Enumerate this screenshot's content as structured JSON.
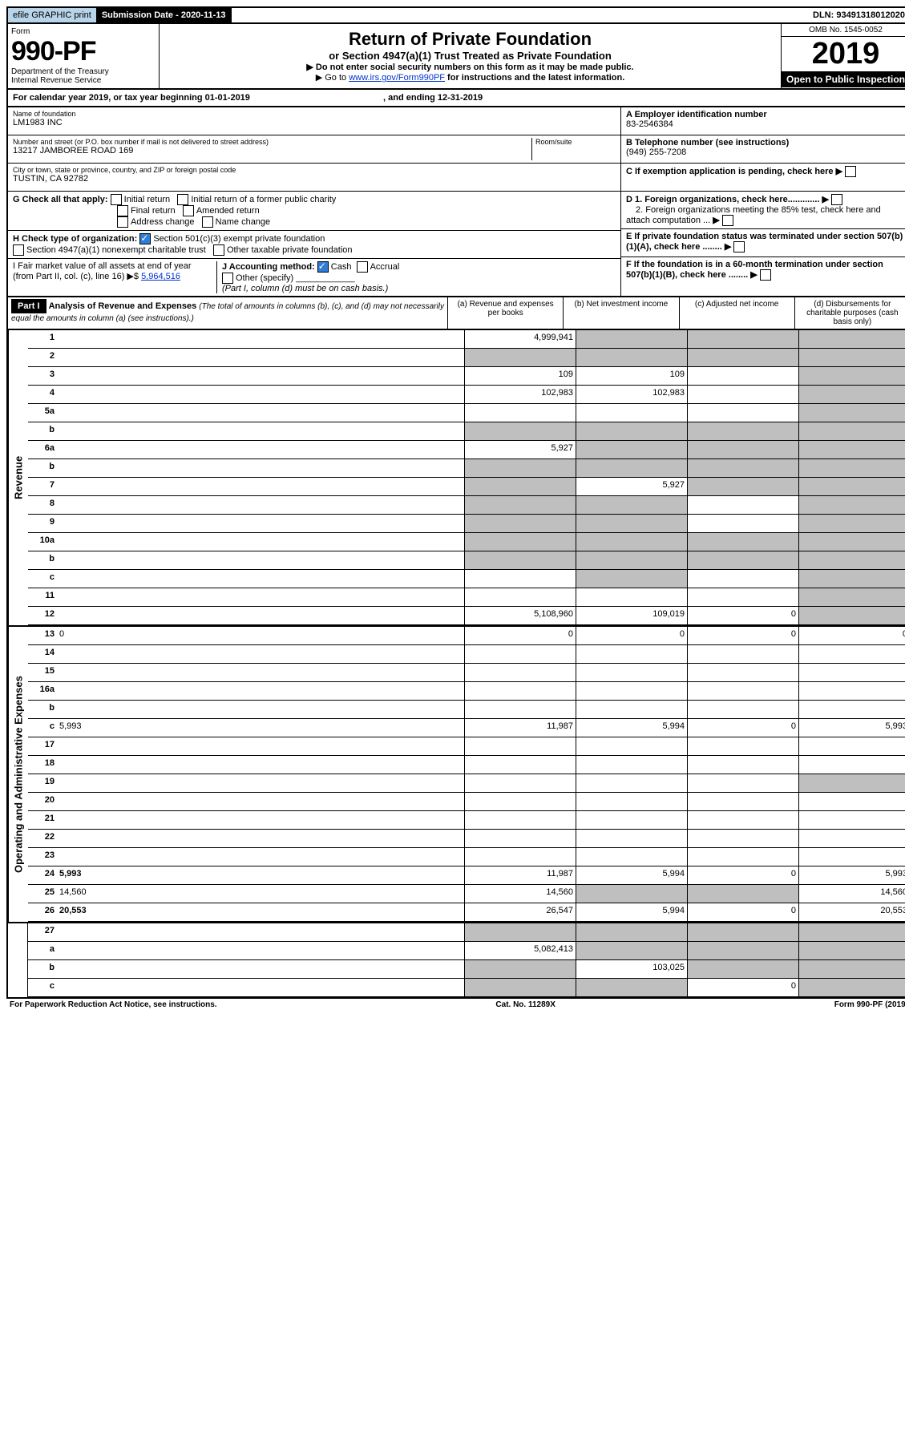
{
  "header": {
    "efile": "efile GRAPHIC print",
    "submission_label": "Submission Date - 2020-11-13",
    "dln": "DLN: 93491318012020"
  },
  "form": {
    "word_form": "Form",
    "number": "990-PF",
    "dept": "Department of the Treasury",
    "irs": "Internal Revenue Service"
  },
  "title": {
    "main": "Return of Private Foundation",
    "sub": "or Section 4947(a)(1) Trust Treated as Private Foundation",
    "note1": "▶ Do not enter social security numbers on this form as it may be made public.",
    "note2_prefix": "▶ Go to ",
    "note2_link": "www.irs.gov/Form990PF",
    "note2_suffix": " for instructions and the latest information."
  },
  "yearbox": {
    "omb": "OMB No. 1545-0052",
    "year": "2019",
    "open": "Open to Public Inspection"
  },
  "cal_year": {
    "prefix": "For calendar year 2019, or tax year beginning 01-01-2019",
    "ending": ", and ending 12-31-2019"
  },
  "name_section": {
    "label": "Name of foundation",
    "value": "LM1983 INC"
  },
  "address": {
    "label": "Number and street (or P.O. box number if mail is not delivered to street address)",
    "value": "13217 JAMBOREE ROAD 169",
    "room_label": "Room/suite"
  },
  "city": {
    "label": "City or town, state or province, country, and ZIP or foreign postal code",
    "value": "TUSTIN, CA  92782"
  },
  "right_a": {
    "label": "A Employer identification number",
    "value": "83-2546384"
  },
  "right_b": {
    "label": "B Telephone number (see instructions)",
    "value": "(949) 255-7208"
  },
  "right_c": "C If exemption application is pending, check here",
  "right_d1": "D 1. Foreign organizations, check here.............",
  "right_d2": "2. Foreign organizations meeting the 85% test, check here and attach computation ...",
  "right_e": "E If private foundation status was terminated under section 507(b)(1)(A), check here ........",
  "right_f": "F If the foundation is in a 60-month termination under section 507(b)(1)(B), check here ........",
  "g_label": "G Check all that apply:",
  "g_opts": {
    "initial": "Initial return",
    "initial_former": "Initial return of a former public charity",
    "final": "Final return",
    "amended": "Amended return",
    "address": "Address change",
    "name": "Name change"
  },
  "h_label": "H Check type of organization:",
  "h_501c3": "Section 501(c)(3) exempt private foundation",
  "h_4947": "Section 4947(a)(1) nonexempt charitable trust",
  "h_other_tax": "Other taxable private foundation",
  "i_label": "I Fair market value of all assets at end of year (from Part II, col. (c), line 16) ▶$",
  "i_value": "5,964,516",
  "j_label": "J Accounting method:",
  "j_cash": "Cash",
  "j_accrual": "Accrual",
  "j_other": "Other (specify)",
  "j_note": "(Part I, column (d) must be on cash basis.)",
  "part1": {
    "label": "Part I",
    "title": "Analysis of Revenue and Expenses",
    "subtitle": "(The total of amounts in columns (b), (c), and (d) may not necessarily equal the amounts in column (a) (see instructions).)"
  },
  "cols": {
    "a": "(a) Revenue and expenses per books",
    "b": "(b) Net investment income",
    "c": "(c) Adjusted net income",
    "d": "(d) Disbursements for charitable purposes (cash basis only)"
  },
  "side_revenue": "Revenue",
  "side_expenses": "Operating and Administrative Expenses",
  "rows": [
    {
      "n": "1",
      "d": "",
      "a": "4,999,941",
      "b": "",
      "c": "",
      "ga": false,
      "gb": true,
      "gc": true,
      "gd": true
    },
    {
      "n": "2",
      "d": "",
      "a": "",
      "b": "",
      "c": "",
      "ga": true,
      "gb": true,
      "gc": true,
      "gd": true
    },
    {
      "n": "3",
      "d": "",
      "a": "109",
      "b": "109",
      "c": "",
      "ga": false,
      "gb": false,
      "gc": false,
      "gd": true
    },
    {
      "n": "4",
      "d": "",
      "a": "102,983",
      "b": "102,983",
      "c": "",
      "ga": false,
      "gb": false,
      "gc": false,
      "gd": true
    },
    {
      "n": "5a",
      "d": "",
      "a": "",
      "b": "",
      "c": "",
      "ga": false,
      "gb": false,
      "gc": false,
      "gd": true
    },
    {
      "n": "b",
      "d": "",
      "a": "",
      "b": "",
      "c": "",
      "ga": true,
      "gb": true,
      "gc": true,
      "gd": true
    },
    {
      "n": "6a",
      "d": "",
      "a": "5,927",
      "b": "",
      "c": "",
      "ga": false,
      "gb": true,
      "gc": true,
      "gd": true
    },
    {
      "n": "b",
      "d": "",
      "a": "",
      "b": "",
      "c": "",
      "ga": true,
      "gb": true,
      "gc": true,
      "gd": true
    },
    {
      "n": "7",
      "d": "",
      "a": "",
      "b": "5,927",
      "c": "",
      "ga": true,
      "gb": false,
      "gc": true,
      "gd": true
    },
    {
      "n": "8",
      "d": "",
      "a": "",
      "b": "",
      "c": "",
      "ga": true,
      "gb": true,
      "gc": false,
      "gd": true
    },
    {
      "n": "9",
      "d": "",
      "a": "",
      "b": "",
      "c": "",
      "ga": true,
      "gb": true,
      "gc": false,
      "gd": true
    },
    {
      "n": "10a",
      "d": "",
      "a": "",
      "b": "",
      "c": "",
      "ga": true,
      "gb": true,
      "gc": true,
      "gd": true
    },
    {
      "n": "b",
      "d": "",
      "a": "",
      "b": "",
      "c": "",
      "ga": true,
      "gb": true,
      "gc": true,
      "gd": true
    },
    {
      "n": "c",
      "d": "",
      "a": "",
      "b": "",
      "c": "",
      "ga": false,
      "gb": true,
      "gc": false,
      "gd": true
    },
    {
      "n": "11",
      "d": "",
      "a": "",
      "b": "",
      "c": "",
      "ga": false,
      "gb": false,
      "gc": false,
      "gd": true
    },
    {
      "n": "12",
      "d": "",
      "a": "5,108,960",
      "b": "109,019",
      "c": "0",
      "ga": false,
      "gb": false,
      "gc": false,
      "gd": true,
      "bold": true
    }
  ],
  "exp_rows": [
    {
      "n": "13",
      "d": "0",
      "a": "0",
      "b": "0",
      "c": "0"
    },
    {
      "n": "14",
      "d": "",
      "a": "",
      "b": "",
      "c": ""
    },
    {
      "n": "15",
      "d": "",
      "a": "",
      "b": "",
      "c": ""
    },
    {
      "n": "16a",
      "d": "",
      "a": "",
      "b": "",
      "c": ""
    },
    {
      "n": "b",
      "d": "",
      "a": "",
      "b": "",
      "c": ""
    },
    {
      "n": "c",
      "d": "5,993",
      "a": "11,987",
      "b": "5,994",
      "c": "0"
    },
    {
      "n": "17",
      "d": "",
      "a": "",
      "b": "",
      "c": ""
    },
    {
      "n": "18",
      "d": "",
      "a": "",
      "b": "",
      "c": ""
    },
    {
      "n": "19",
      "d": "",
      "a": "",
      "b": "",
      "c": "",
      "gd": true
    },
    {
      "n": "20",
      "d": "",
      "a": "",
      "b": "",
      "c": ""
    },
    {
      "n": "21",
      "d": "",
      "a": "",
      "b": "",
      "c": ""
    },
    {
      "n": "22",
      "d": "",
      "a": "",
      "b": "",
      "c": ""
    },
    {
      "n": "23",
      "d": "",
      "a": "",
      "b": "",
      "c": ""
    },
    {
      "n": "24",
      "d": "5,993",
      "a": "11,987",
      "b": "5,994",
      "c": "0",
      "bold": true
    },
    {
      "n": "25",
      "d": "14,560",
      "a": "14,560",
      "b": "",
      "c": "",
      "gb": true,
      "gc": true
    },
    {
      "n": "26",
      "d": "20,553",
      "a": "26,547",
      "b": "5,994",
      "c": "0",
      "bold": true
    }
  ],
  "last_rows": [
    {
      "n": "27",
      "d": "",
      "a": "",
      "b": "",
      "c": "",
      "ga": true,
      "gb": true,
      "gc": true,
      "gd": true
    },
    {
      "n": "a",
      "d": "",
      "a": "5,082,413",
      "b": "",
      "c": "",
      "bold": true,
      "gb": true,
      "gc": true,
      "gd": true
    },
    {
      "n": "b",
      "d": "",
      "a": "",
      "b": "103,025",
      "c": "",
      "bold": true,
      "ga": true,
      "gc": true,
      "gd": true
    },
    {
      "n": "c",
      "d": "",
      "a": "",
      "b": "",
      "c": "0",
      "bold": true,
      "ga": true,
      "gb": true,
      "gd": true
    }
  ],
  "footer": {
    "left": "For Paperwork Reduction Act Notice, see instructions.",
    "mid": "Cat. No. 11289X",
    "right": "Form 990-PF (2019)"
  }
}
